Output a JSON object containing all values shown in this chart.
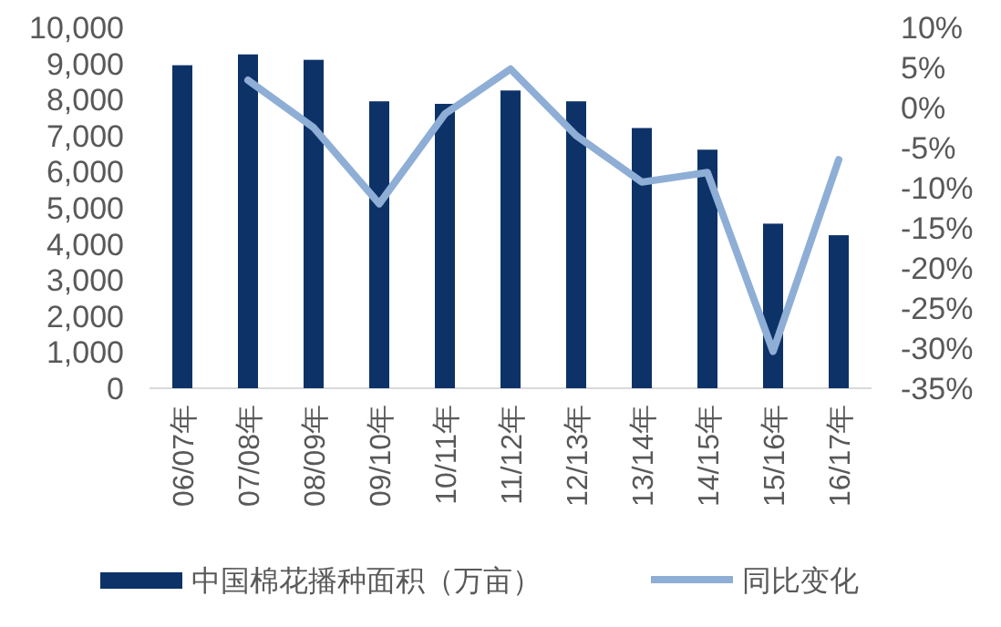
{
  "chart_data": {
    "type": "bar",
    "categories": [
      "06/07年",
      "07/08年",
      "08/09年",
      "09/10年",
      "10/11年",
      "11/12年",
      "12/13年",
      "13/14年",
      "14/15年",
      "15/16年",
      "16/17年"
    ],
    "series": [
      {
        "name": "中国棉花播种面积（万亩）",
        "color": "#0d3268",
        "values": [
          8950,
          9250,
          9100,
          7950,
          7880,
          8250,
          7950,
          7210,
          6610,
          4560,
          4240
        ]
      },
      {
        "name": "同比变化",
        "type": "line",
        "axis": "y2",
        "color": "#8eaed6",
        "values": [
          null,
          3.4,
          -2.5,
          -12,
          -0.8,
          4.8,
          -3.5,
          -9.3,
          -8.1,
          -30.4,
          -6.5
        ]
      }
    ],
    "ylim": [
      0,
      10000
    ],
    "yticks": [
      {
        "value": 0,
        "label": "0"
      },
      {
        "value": 1000,
        "label": "1,000"
      },
      {
        "value": 2000,
        "label": "2,000"
      },
      {
        "value": 3000,
        "label": "3,000"
      },
      {
        "value": 4000,
        "label": "4,000"
      },
      {
        "value": 5000,
        "label": "5,000"
      },
      {
        "value": 6000,
        "label": "6,000"
      },
      {
        "value": 7000,
        "label": "7,000"
      },
      {
        "value": 8000,
        "label": "8,000"
      },
      {
        "value": 9000,
        "label": "9,000"
      },
      {
        "value": 10000,
        "label": "10,000"
      }
    ],
    "y2lim": [
      -35,
      10
    ],
    "y2ticks": [
      {
        "value": -35,
        "label": "-35%"
      },
      {
        "value": -30,
        "label": "-30%"
      },
      {
        "value": -25,
        "label": "-25%"
      },
      {
        "value": -20,
        "label": "-20%"
      },
      {
        "value": -15,
        "label": "-15%"
      },
      {
        "value": -10,
        "label": "-10%"
      },
      {
        "value": -5,
        "label": "-5%"
      },
      {
        "value": 0,
        "label": "0%"
      },
      {
        "value": 5,
        "label": "5%"
      },
      {
        "value": 10,
        "label": "10%"
      }
    ],
    "grid": false,
    "legend": "bottom"
  }
}
